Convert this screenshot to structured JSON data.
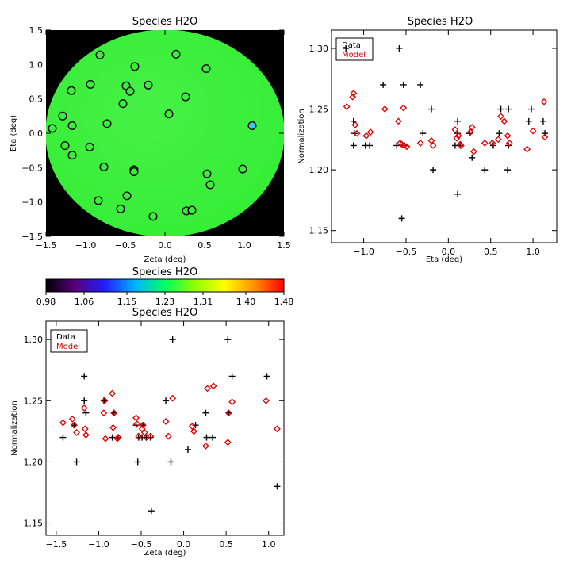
{
  "chart_data": [
    {
      "type": "heatmap",
      "title": "Species H2O",
      "xlabel": "Zeta (deg)",
      "ylabel": "Eta (deg)",
      "xlim": [
        -1.5,
        1.5
      ],
      "ylim": [
        -1.5,
        1.5
      ],
      "xticks": [
        -1.5,
        -1.0,
        -0.5,
        0.0,
        0.5,
        1.0,
        1.5
      ],
      "yticks": [
        -1.5,
        -1.0,
        -0.5,
        0.0,
        0.5,
        1.0,
        1.5
      ],
      "xtick_labels": [
        "−1.5",
        "−1.0",
        "−0.5",
        "0.0",
        "0.5",
        "1.0",
        "1.5"
      ],
      "ytick_labels": [
        "−1.5",
        "−1.0",
        "−0.5",
        "0.0",
        "0.5",
        "1.0",
        "1.5"
      ],
      "field_color": "#3cf03c",
      "outside_color": "#000000",
      "points": [
        {
          "zeta": -0.82,
          "eta": 1.14,
          "fill": "#3cee3c"
        },
        {
          "zeta": 0.14,
          "eta": 1.15,
          "fill": "#3cee3c"
        },
        {
          "zeta": -0.38,
          "eta": 0.97,
          "fill": "#3cee3c"
        },
        {
          "zeta": 0.52,
          "eta": 0.94,
          "fill": "#3cee3c"
        },
        {
          "zeta": -0.94,
          "eta": 0.71,
          "fill": "#3cee3c"
        },
        {
          "zeta": -0.21,
          "eta": 0.7,
          "fill": "#3cee3c"
        },
        {
          "zeta": -0.49,
          "eta": 0.69,
          "fill": "#3cee3c"
        },
        {
          "zeta": -0.44,
          "eta": 0.61,
          "fill": "#3cee3c"
        },
        {
          "zeta": -1.18,
          "eta": 0.62,
          "fill": "#3cee3c"
        },
        {
          "zeta": 0.26,
          "eta": 0.53,
          "fill": "#3cee3c"
        },
        {
          "zeta": -0.53,
          "eta": 0.43,
          "fill": "#3cee3c"
        },
        {
          "zeta": -1.29,
          "eta": 0.25,
          "fill": "#3cee3c"
        },
        {
          "zeta": 0.05,
          "eta": 0.28,
          "fill": "#3cee3c"
        },
        {
          "zeta": -0.73,
          "eta": 0.14,
          "fill": "#3cee3c"
        },
        {
          "zeta": -1.42,
          "eta": 0.07,
          "fill": "#3cee3c"
        },
        {
          "zeta": -1.17,
          "eta": 0.11,
          "fill": "#3cee3c"
        },
        {
          "zeta": 1.1,
          "eta": 0.11,
          "fill": "#3fc8ec"
        },
        {
          "zeta": -1.26,
          "eta": -0.18,
          "fill": "#3cee3c"
        },
        {
          "zeta": -0.95,
          "eta": -0.2,
          "fill": "#3cee3c"
        },
        {
          "zeta": -1.17,
          "eta": -0.32,
          "fill": "#3cee3c"
        },
        {
          "zeta": -0.77,
          "eta": -0.49,
          "fill": "#3cee3c"
        },
        {
          "zeta": -0.39,
          "eta": -0.53,
          "fill": "#3cee3c"
        },
        {
          "zeta": -0.39,
          "eta": -0.56,
          "fill": "#3cee3c"
        },
        {
          "zeta": 0.53,
          "eta": -0.59,
          "fill": "#3cee3c"
        },
        {
          "zeta": 0.57,
          "eta": -0.75,
          "fill": "#3cee3c"
        },
        {
          "zeta": 0.98,
          "eta": -0.52,
          "fill": "#3cee3c"
        },
        {
          "zeta": -0.48,
          "eta": -0.91,
          "fill": "#3cee3c"
        },
        {
          "zeta": -0.84,
          "eta": -0.98,
          "fill": "#3cee3c"
        },
        {
          "zeta": -0.56,
          "eta": -1.1,
          "fill": "#3cee3c"
        },
        {
          "zeta": -0.15,
          "eta": -1.21,
          "fill": "#3cee3c"
        },
        {
          "zeta": 0.27,
          "eta": -1.13,
          "fill": "#3cee3c"
        },
        {
          "zeta": 0.34,
          "eta": -1.12,
          "fill": "#3cee3c"
        }
      ]
    },
    {
      "type": "scatter",
      "title": "Species H2O",
      "xlabel": "Eta (deg)",
      "ylabel": "Normalization",
      "xlim": [
        -1.38,
        1.28
      ],
      "ylim": [
        1.14,
        1.315
      ],
      "xticks": [
        -1.0,
        -0.5,
        0.0,
        0.5,
        1.0
      ],
      "yticks": [
        1.15,
        1.2,
        1.25,
        1.3
      ],
      "xtick_labels": [
        "−1.0",
        "−0.5",
        "0.0",
        "0.5",
        "1.0"
      ],
      "ytick_labels": [
        "1.15",
        "1.20",
        "1.25",
        "1.30"
      ],
      "legend": {
        "position": "top-left",
        "entries": [
          "Data",
          "Model"
        ]
      },
      "series": [
        {
          "name": "Data",
          "marker": "plus",
          "color": "#000000",
          "points": [
            [
              -1.21,
              1.3
            ],
            [
              -1.12,
              1.24
            ],
            [
              -1.11,
              1.23
            ],
            [
              -1.12,
              1.22
            ],
            [
              -0.98,
              1.22
            ],
            [
              -0.93,
              1.22
            ],
            [
              -0.77,
              1.27
            ],
            [
              -0.61,
              1.22
            ],
            [
              -0.58,
              1.3
            ],
            [
              -0.55,
              1.16
            ],
            [
              -0.53,
              1.27
            ],
            [
              -0.52,
              1.22
            ],
            [
              -0.33,
              1.27
            ],
            [
              -0.3,
              1.23
            ],
            [
              -0.2,
              1.25
            ],
            [
              -0.18,
              1.2
            ],
            [
              0.08,
              1.22
            ],
            [
              0.11,
              1.24
            ],
            [
              0.11,
              1.23
            ],
            [
              0.11,
              1.18
            ],
            [
              0.14,
              1.22
            ],
            [
              0.25,
              1.23
            ],
            [
              0.28,
              1.21
            ],
            [
              0.43,
              1.2
            ],
            [
              0.53,
              1.22
            ],
            [
              0.6,
              1.23
            ],
            [
              0.62,
              1.25
            ],
            [
              0.7,
              1.2
            ],
            [
              0.71,
              1.22
            ],
            [
              0.71,
              1.25
            ],
            [
              0.95,
              1.24
            ],
            [
              0.98,
              1.25
            ],
            [
              1.12,
              1.24
            ],
            [
              1.14,
              1.23
            ]
          ]
        },
        {
          "name": "Model",
          "marker": "diamond",
          "color": "#e00000",
          "points": [
            [
              -1.2,
              1.252
            ],
            [
              -1.13,
              1.26
            ],
            [
              -1.12,
              1.263
            ],
            [
              -1.1,
              1.237
            ],
            [
              -1.08,
              1.23
            ],
            [
              -0.97,
              1.228
            ],
            [
              -0.92,
              1.231
            ],
            [
              -0.75,
              1.25
            ],
            [
              -0.59,
              1.24
            ],
            [
              -0.57,
              1.222
            ],
            [
              -0.55,
              1.221
            ],
            [
              -0.53,
              1.251
            ],
            [
              -0.52,
              1.22
            ],
            [
              -0.49,
              1.219
            ],
            [
              -0.33,
              1.222
            ],
            [
              -0.2,
              1.224
            ],
            [
              -0.18,
              1.22
            ],
            [
              0.08,
              1.233
            ],
            [
              0.1,
              1.226
            ],
            [
              0.12,
              1.228
            ],
            [
              0.14,
              1.221
            ],
            [
              0.15,
              1.22
            ],
            [
              0.26,
              1.231
            ],
            [
              0.28,
              1.235
            ],
            [
              0.3,
              1.215
            ],
            [
              0.43,
              1.222
            ],
            [
              0.52,
              1.222
            ],
            [
              0.59,
              1.225
            ],
            [
              0.62,
              1.244
            ],
            [
              0.66,
              1.24
            ],
            [
              0.7,
              1.228
            ],
            [
              0.72,
              1.222
            ],
            [
              0.93,
              1.217
            ],
            [
              1.0,
              1.232
            ],
            [
              1.13,
              1.256
            ],
            [
              1.14,
              1.227
            ]
          ]
        }
      ]
    },
    {
      "type": "colorbar",
      "title": "Species H2O",
      "range": [
        0.98,
        1.48
      ],
      "tick_values": [
        0.98,
        1.06,
        1.15,
        1.23,
        1.31,
        1.4,
        1.48
      ],
      "tick_labels": [
        "0.98",
        "1.06",
        "1.15",
        "1.23",
        "1.31",
        "1.40",
        "1.48"
      ],
      "colormap_stops": [
        "#000000",
        "#5a0080",
        "#2020ff",
        "#00b4ff",
        "#00ff60",
        "#90ff00",
        "#ffff00",
        "#ff9000",
        "#ff0000"
      ]
    },
    {
      "type": "scatter",
      "title": "Species H2O",
      "xlabel": "Zeta (deg)",
      "ylabel": "Normalization",
      "xlim": [
        -1.62,
        1.18
      ],
      "ylim": [
        1.14,
        1.315
      ],
      "xticks": [
        -1.5,
        -1.0,
        -0.5,
        0.0,
        0.5,
        1.0
      ],
      "yticks": [
        1.15,
        1.2,
        1.25,
        1.3
      ],
      "xtick_labels": [
        "−1.5",
        "−1.0",
        "−0.5",
        "0.0",
        "0.5",
        "1.0"
      ],
      "ytick_labels": [
        "1.15",
        "1.20",
        "1.25",
        "1.30"
      ],
      "legend": {
        "position": "top-left",
        "entries": [
          "Data",
          "Model"
        ]
      },
      "series": [
        {
          "name": "Data",
          "marker": "plus",
          "color": "#000000",
          "points": [
            [
              -1.42,
              1.22
            ],
            [
              -1.29,
              1.23
            ],
            [
              -1.26,
              1.2
            ],
            [
              -1.17,
              1.27
            ],
            [
              -1.17,
              1.25
            ],
            [
              -1.15,
              1.24
            ],
            [
              -0.94,
              1.25
            ],
            [
              -0.93,
              1.25
            ],
            [
              -0.84,
              1.22
            ],
            [
              -0.82,
              1.24
            ],
            [
              -0.77,
              1.22
            ],
            [
              -0.56,
              1.23
            ],
            [
              -0.54,
              1.2
            ],
            [
              -0.53,
              1.22
            ],
            [
              -0.49,
              1.22
            ],
            [
              -0.48,
              1.23
            ],
            [
              -0.44,
              1.22
            ],
            [
              -0.39,
              1.22
            ],
            [
              -0.38,
              1.16
            ],
            [
              -0.21,
              1.25
            ],
            [
              -0.15,
              1.2
            ],
            [
              -0.13,
              1.3
            ],
            [
              0.05,
              1.21
            ],
            [
              0.14,
              1.23
            ],
            [
              0.26,
              1.24
            ],
            [
              0.27,
              1.22
            ],
            [
              0.34,
              1.22
            ],
            [
              0.52,
              1.3
            ],
            [
              0.53,
              1.24
            ],
            [
              0.57,
              1.27
            ],
            [
              0.98,
              1.27
            ],
            [
              1.1,
              1.18
            ]
          ]
        },
        {
          "name": "Model",
          "marker": "diamond",
          "color": "#e00000",
          "points": [
            [
              -1.42,
              1.232
            ],
            [
              -1.31,
              1.235
            ],
            [
              -1.29,
              1.23
            ],
            [
              -1.26,
              1.224
            ],
            [
              -1.17,
              1.244
            ],
            [
              -1.16,
              1.227
            ],
            [
              -1.15,
              1.222
            ],
            [
              -0.94,
              1.24
            ],
            [
              -0.93,
              1.25
            ],
            [
              -0.92,
              1.219
            ],
            [
              -0.84,
              1.256
            ],
            [
              -0.83,
              1.228
            ],
            [
              -0.82,
              1.24
            ],
            [
              -0.78,
              1.219
            ],
            [
              -0.77,
              1.22
            ],
            [
              -0.56,
              1.236
            ],
            [
              -0.55,
              1.231
            ],
            [
              -0.53,
              1.221
            ],
            [
              -0.49,
              1.227
            ],
            [
              -0.48,
              1.23
            ],
            [
              -0.46,
              1.224
            ],
            [
              -0.44,
              1.22
            ],
            [
              -0.39,
              1.221
            ],
            [
              -0.21,
              1.233
            ],
            [
              -0.18,
              1.221
            ],
            [
              -0.13,
              1.252
            ],
            [
              0.1,
              1.229
            ],
            [
              0.12,
              1.225
            ],
            [
              0.26,
              1.213
            ],
            [
              0.28,
              1.26
            ],
            [
              0.35,
              1.262
            ],
            [
              0.52,
              1.216
            ],
            [
              0.53,
              1.24
            ],
            [
              0.57,
              1.249
            ],
            [
              0.97,
              1.25
            ],
            [
              1.1,
              1.227
            ]
          ]
        }
      ]
    }
  ]
}
